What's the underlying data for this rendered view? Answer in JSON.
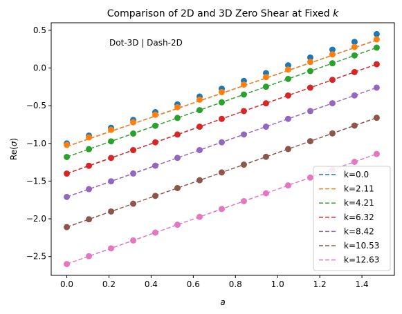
{
  "chart_data": {
    "type": "line",
    "title_prefix": "Comparison of 2D and 3D Zero Shear at Fixed ",
    "title_var": "k",
    "xlabel": "a",
    "ylabel_prefix": "Re(",
    "ylabel_var": "σ",
    "ylabel_suffix": ")",
    "annotation": "Dot-3D | Dash-2D",
    "xlim": [
      -0.074,
      1.554
    ],
    "ylim": [
      -2.75,
      0.6
    ],
    "xticks": [
      0.0,
      0.2,
      0.4,
      0.6,
      0.8,
      1.0,
      1.2,
      1.4
    ],
    "xtick_labels": [
      "0.0",
      "0.2",
      "0.4",
      "0.6",
      "0.8",
      "1.0",
      "1.2",
      "1.4"
    ],
    "yticks": [
      0.5,
      0.0,
      -0.5,
      -1.0,
      -1.5,
      -2.0,
      -2.5
    ],
    "ytick_labels": [
      "0.5",
      "0.0",
      "−0.5",
      "−1.0",
      "−1.5",
      "−2.0",
      "−2.5"
    ],
    "grid": false,
    "legend_position": "lower-right",
    "x": [
      0.0,
      0.105,
      0.21,
      0.315,
      0.42,
      0.525,
      0.63,
      0.735,
      0.84,
      0.945,
      1.05,
      1.155,
      1.26,
      1.365,
      1.47
    ],
    "series": [
      {
        "name": "k=0.0",
        "color": "#1f77b4",
        "dot_start": -1.0,
        "dot_end": 0.45,
        "dash_start": -1.04,
        "dash_end": 0.37
      },
      {
        "name": "k=2.11",
        "color": "#ff7f0e",
        "dot_start": -1.02,
        "dot_end": 0.38,
        "dash_start": -1.04,
        "dash_end": 0.37
      },
      {
        "name": "k=4.21",
        "color": "#2ca02c",
        "dot_start": -1.18,
        "dot_end": 0.27,
        "dash_start": -1.18,
        "dash_end": 0.27
      },
      {
        "name": "k=6.32",
        "color": "#d62728",
        "dot_start": -1.4,
        "dot_end": 0.05,
        "dash_start": -1.4,
        "dash_end": 0.05
      },
      {
        "name": "k=8.42",
        "color": "#9467bd",
        "dot_start": -1.71,
        "dot_end": -0.26,
        "dash_start": -1.71,
        "dash_end": -0.26
      },
      {
        "name": "k=10.53",
        "color": "#8c564b",
        "dot_start": -2.11,
        "dot_end": -0.66,
        "dash_start": -2.11,
        "dash_end": -0.66
      },
      {
        "name": "k=12.63",
        "color": "#e377c2",
        "dot_start": -2.6,
        "dot_end": -1.14,
        "dash_start": -2.6,
        "dash_end": -1.14
      }
    ]
  }
}
